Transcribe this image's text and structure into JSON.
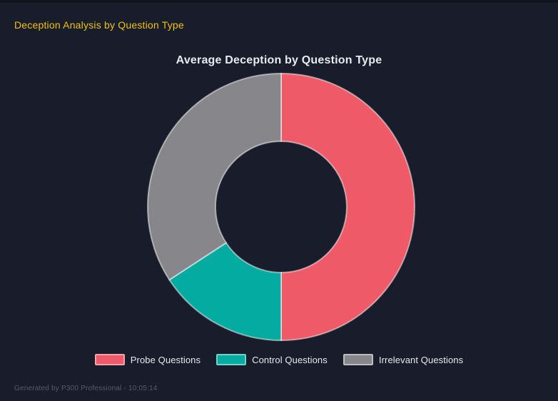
{
  "page": {
    "background_color": "#191d2b",
    "header": {
      "title": "Deception Analysis by Question Type",
      "title_color": "#f2c115"
    },
    "footer": {
      "text": "Generated by P300 Professional - 10:05:14",
      "text_color": "#555b6e"
    }
  },
  "chart_data": {
    "type": "pie",
    "variant": "doughnut",
    "title": "Average Deception by Question Type",
    "labels": [
      "Probe Questions",
      "Control Questions",
      "Irrelevant Questions"
    ],
    "values_percent": [
      50,
      15.8,
      34.2
    ],
    "colors": [
      "#ee5a67",
      "#03aba1",
      "#87878b"
    ],
    "segment_border_color": "rgba(255,255,255,0.5)",
    "segment_border_width": 2,
    "start_angle_deg": 0,
    "direction": "clockwise",
    "cutout_percent": 49,
    "legend_position": "bottom",
    "grid": false
  }
}
